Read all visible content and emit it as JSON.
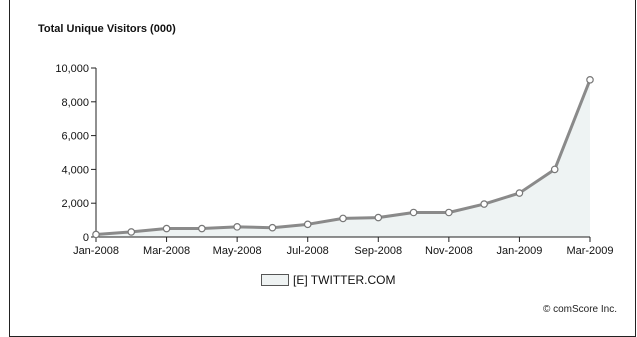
{
  "chart_data": {
    "type": "area",
    "title": "Total Unique Visitors (000)",
    "xlabel": "",
    "ylabel": "",
    "x": [
      "Jan-2008",
      "Feb-2008",
      "Mar-2008",
      "Apr-2008",
      "May-2008",
      "Jun-2008",
      "Jul-2008",
      "Aug-2008",
      "Sep-2008",
      "Oct-2008",
      "Nov-2008",
      "Dec-2008",
      "Jan-2009",
      "Feb-2009",
      "Mar-2009"
    ],
    "x_tick_labels": [
      "Jan-2008",
      "Mar-2008",
      "May-2008",
      "Jul-2008",
      "Sep-2008",
      "Nov-2008",
      "Jan-2009",
      "Mar-2009"
    ],
    "series": [
      {
        "name": "[E] TWITTER.COM",
        "values": [
          150,
          300,
          500,
          500,
          600,
          550,
          750,
          1100,
          1150,
          1450,
          1450,
          1950,
          2600,
          4000,
          9300
        ]
      }
    ],
    "ylim": [
      0,
      10000
    ],
    "y_ticks": [
      0,
      2000,
      4000,
      6000,
      8000,
      10000
    ],
    "y_tick_labels": [
      "0",
      "2,000",
      "4,000",
      "6,000",
      "8,000",
      "10,000"
    ],
    "grid": false,
    "legend_position": "bottom-center",
    "colors": {
      "line": "#8a8a8a",
      "area": "#eef3f3",
      "marker_fill": "#ffffff",
      "marker_stroke": "#777777"
    }
  },
  "credit": "© comScore Inc."
}
